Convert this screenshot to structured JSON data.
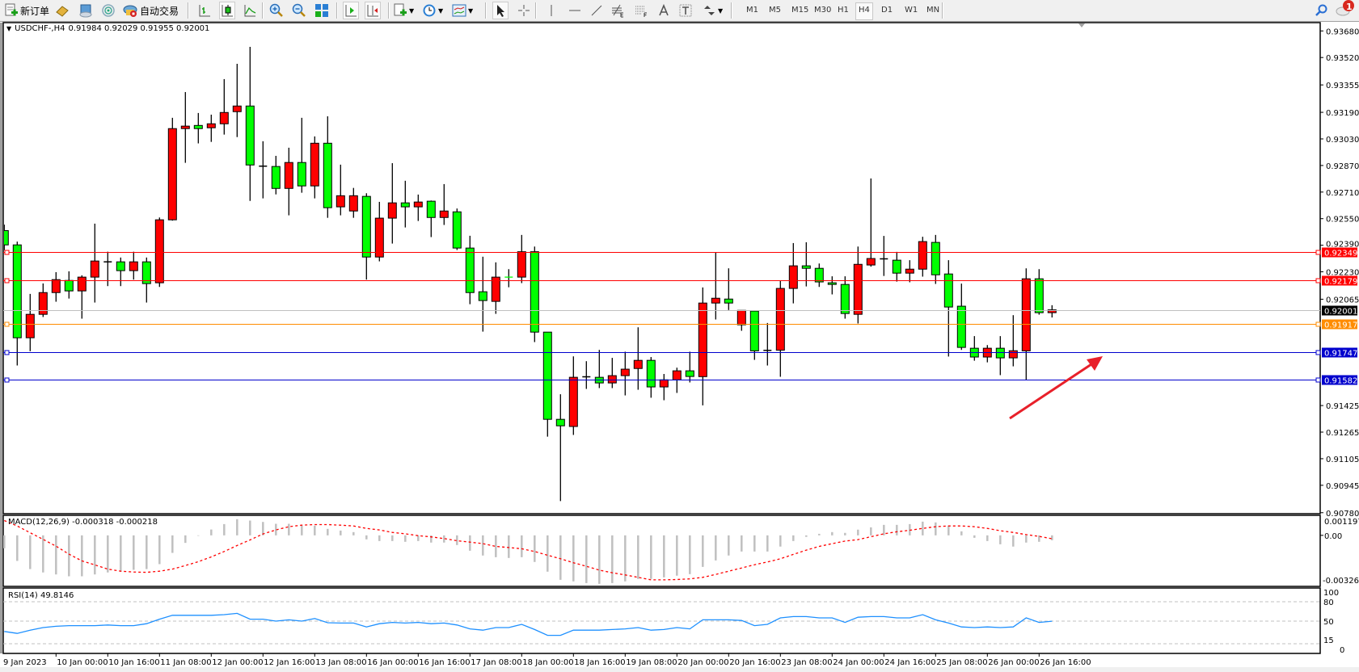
{
  "toolbar": {
    "new_order_label": "新订单",
    "auto_trading_label": "自动交易",
    "timeframes": [
      "M1",
      "M5",
      "M15",
      "M30",
      "H1",
      "H4",
      "D1",
      "W1",
      "MN"
    ],
    "active_timeframe": "H4",
    "notification_count": "1",
    "icons": [
      "new-order-icon",
      "metaeditor-icon",
      "terminal-icon",
      "signals-icon",
      "auto-trading-icon",
      "bar-chart-icon",
      "candlestick-icon",
      "line-chart-icon",
      "zoom-in-icon",
      "zoom-out-icon",
      "tile-windows-icon",
      "auto-scroll-icon",
      "chart-shift-icon",
      "new-chart-icon",
      "periods-icon",
      "templates-icon",
      "cursor-icon",
      "crosshair-icon",
      "vertical-line-icon",
      "horizontal-line-icon",
      "trendline-icon",
      "fibonacci-expansion-icon",
      "fibonacci-fan-icon",
      "text-icon",
      "text-label-icon",
      "arrows-icon",
      "search-icon",
      "notifications-icon"
    ]
  },
  "chart": {
    "symbol_header": "USDCHF-,H4",
    "ohlc_header": "0.91984 0.92029 0.91955 0.92001",
    "colors": {
      "bull": "#ff0000",
      "bear": "#00ff00",
      "wick": "#000000",
      "hist": "#c0c0c0",
      "signal": "#ff0000",
      "rsi": "#1e90ff",
      "arrow": "#e8202a"
    },
    "price_axis_labels": [
      "0.93680",
      "0.93520",
      "0.93355",
      "0.93190",
      "0.93030",
      "0.92870",
      "0.92710",
      "0.92550",
      "0.92390",
      "0.92230",
      "0.92065",
      "0.91425",
      "0.91265",
      "0.91105",
      "0.90945",
      "0.90780"
    ],
    "levels": [
      {
        "price": "0.92349",
        "color": "#ff0000"
      },
      {
        "price": "0.92179",
        "color": "#ff0000"
      },
      {
        "price": "0.92001",
        "color": "#000000",
        "line": "#c0c0c0"
      },
      {
        "price": "0.91917",
        "color": "#ff8c00"
      },
      {
        "price": "0.91747",
        "color": "#0000cd"
      },
      {
        "price": "0.91582",
        "color": "#0000cd"
      }
    ],
    "x_labels": [
      "9 Jan 2023",
      "10 Jan 00:00",
      "10 Jan 16:00",
      "11 Jan 08:00",
      "12 Jan 00:00",
      "12 Jan 16:00",
      "13 Jan 08:00",
      "16 Jan 00:00",
      "16 Jan 16:00",
      "17 Jan 08:00",
      "18 Jan 00:00",
      "18 Jan 16:00",
      "19 Jan 08:00",
      "20 Jan 00:00",
      "20 Jan 16:00",
      "23 Jan 08:00",
      "24 Jan 00:00",
      "24 Jan 16:00",
      "25 Jan 08:00",
      "26 Jan 00:00",
      "26 Jan 16:00"
    ]
  },
  "macd": {
    "label": "MACD(12,26,9) -0.000318 -0.000218",
    "axis_labels": [
      "0.001197",
      "0.00",
      "-0.003263"
    ]
  },
  "rsi": {
    "label": "RSI(14) 49.8146",
    "axis_labels": [
      "100",
      "80",
      "50",
      "15",
      "0"
    ]
  },
  "chart_data": {
    "type": "candlestick",
    "timeframe": "H4",
    "ylim": [
      0.90774,
      0.9373
    ],
    "ohlc": [
      [
        0.92478,
        0.92514,
        0.9236,
        0.92392
      ],
      [
        0.92392,
        0.92412,
        0.91666,
        0.91833
      ],
      [
        0.91833,
        0.92097,
        0.91752,
        0.91974
      ],
      [
        0.91974,
        0.9216,
        0.91958,
        0.92105
      ],
      [
        0.92105,
        0.92228,
        0.9205,
        0.92183
      ],
      [
        0.92178,
        0.92233,
        0.92069,
        0.92115
      ],
      [
        0.92115,
        0.92209,
        0.91948,
        0.92198
      ],
      [
        0.92198,
        0.9252,
        0.92045,
        0.92295
      ],
      [
        0.9229,
        0.92351,
        0.92144,
        0.9229
      ],
      [
        0.9229,
        0.92316,
        0.92144,
        0.92237
      ],
      [
        0.92237,
        0.92351,
        0.92183,
        0.9229
      ],
      [
        0.9229,
        0.92316,
        0.92045,
        0.92159
      ],
      [
        0.92164,
        0.92557,
        0.92139,
        0.92543
      ],
      [
        0.92543,
        0.93157,
        0.92538,
        0.93092
      ],
      [
        0.93092,
        0.93312,
        0.92886,
        0.93107
      ],
      [
        0.93111,
        0.93186,
        0.93003,
        0.93092
      ],
      [
        0.93097,
        0.93176,
        0.93012,
        0.93121
      ],
      [
        0.93121,
        0.9339,
        0.93056,
        0.93189
      ],
      [
        0.93194,
        0.93482,
        0.93041,
        0.93228
      ],
      [
        0.93228,
        0.93584,
        0.92657,
        0.92873
      ],
      [
        0.92866,
        0.93016,
        0.92672,
        0.92866
      ],
      [
        0.92864,
        0.92928,
        0.92696,
        0.92732
      ],
      [
        0.92732,
        0.92977,
        0.9257,
        0.92888
      ],
      [
        0.92888,
        0.93157,
        0.92706,
        0.92747
      ],
      [
        0.92747,
        0.93045,
        0.92672,
        0.93004
      ],
      [
        0.93004,
        0.93166,
        0.92555,
        0.92616
      ],
      [
        0.92621,
        0.92875,
        0.9257,
        0.92688
      ],
      [
        0.92596,
        0.92735,
        0.92555,
        0.92688
      ],
      [
        0.92684,
        0.92703,
        0.92183,
        0.92319
      ],
      [
        0.92319,
        0.92651,
        0.92293,
        0.92553
      ],
      [
        0.92553,
        0.92884,
        0.924,
        0.92645
      ],
      [
        0.92645,
        0.92778,
        0.92497,
        0.92621
      ],
      [
        0.92621,
        0.92695,
        0.92536,
        0.9265
      ],
      [
        0.92655,
        0.92659,
        0.92439,
        0.92557
      ],
      [
        0.92557,
        0.92758,
        0.92512,
        0.92596
      ],
      [
        0.92591,
        0.92611,
        0.92361,
        0.92373
      ],
      [
        0.92373,
        0.92447,
        0.92035,
        0.92105
      ],
      [
        0.9211,
        0.92321,
        0.9187,
        0.92057
      ],
      [
        0.92052,
        0.92287,
        0.91977,
        0.92198
      ],
      [
        0.92198,
        0.92246,
        0.92137,
        0.92197
      ],
      [
        0.92198,
        0.92452,
        0.92162,
        0.92351
      ],
      [
        0.92351,
        0.92382,
        0.91807,
        0.91867
      ],
      [
        0.91867,
        0.91867,
        0.91238,
        0.91342
      ],
      [
        0.91342,
        0.91493,
        0.9085,
        0.91303
      ],
      [
        0.91299,
        0.91721,
        0.91248,
        0.91595
      ],
      [
        0.91598,
        0.91692,
        0.91525,
        0.91598
      ],
      [
        0.91595,
        0.9176,
        0.9153,
        0.91561
      ],
      [
        0.91561,
        0.91712,
        0.9153,
        0.91605
      ],
      [
        0.91605,
        0.91749,
        0.91486,
        0.91644
      ],
      [
        0.91648,
        0.91896,
        0.9152,
        0.91697
      ],
      [
        0.91697,
        0.91717,
        0.91472,
        0.91537
      ],
      [
        0.91537,
        0.91615,
        0.91457,
        0.9158
      ],
      [
        0.9158,
        0.91653,
        0.91501,
        0.91634
      ],
      [
        0.91634,
        0.91749,
        0.91564,
        0.916
      ],
      [
        0.91599,
        0.92136,
        0.91426,
        0.92042
      ],
      [
        0.92042,
        0.92345,
        0.91943,
        0.92071
      ],
      [
        0.92066,
        0.92251,
        0.92,
        0.92042
      ],
      [
        0.91911,
        0.91998,
        0.91875,
        0.91998
      ],
      [
        0.91994,
        0.91994,
        0.917,
        0.91754
      ],
      [
        0.91757,
        0.91922,
        0.91666,
        0.91757
      ],
      [
        0.91758,
        0.92175,
        0.91598,
        0.9213
      ],
      [
        0.9213,
        0.92403,
        0.9204,
        0.92266
      ],
      [
        0.92266,
        0.92408,
        0.92142,
        0.92251
      ],
      [
        0.92251,
        0.9228,
        0.92139,
        0.92169
      ],
      [
        0.92164,
        0.92203,
        0.92094,
        0.92154
      ],
      [
        0.92154,
        0.92203,
        0.91948,
        0.91979
      ],
      [
        0.91974,
        0.92382,
        0.91919,
        0.92275
      ],
      [
        0.92271,
        0.92792,
        0.92261,
        0.9231
      ],
      [
        0.92308,
        0.92446,
        0.92205,
        0.92308
      ],
      [
        0.923,
        0.9235,
        0.92171,
        0.92222
      ],
      [
        0.92222,
        0.923,
        0.92167,
        0.92246
      ],
      [
        0.92246,
        0.92441,
        0.92201,
        0.92412
      ],
      [
        0.92407,
        0.92452,
        0.92157,
        0.92212
      ],
      [
        0.92217,
        0.923,
        0.9172,
        0.92018
      ],
      [
        0.92023,
        0.92159,
        0.9176,
        0.91775
      ],
      [
        0.9177,
        0.91843,
        0.91695,
        0.91717
      ],
      [
        0.91717,
        0.91789,
        0.91685,
        0.9177
      ],
      [
        0.9177,
        0.91843,
        0.91608,
        0.91712
      ],
      [
        0.91712,
        0.91969,
        0.91661,
        0.91755
      ],
      [
        0.91754,
        0.92251,
        0.91579,
        0.92188
      ],
      [
        0.92188,
        0.92246,
        0.91972,
        0.91984
      ],
      [
        0.91984,
        0.92029,
        0.91955,
        0.92001
      ]
    ],
    "macd": {
      "ylim": [
        -0.003263,
        0.001197
      ],
      "histogram": [
        -0.00084,
        -0.00166,
        -0.00219,
        -0.00241,
        -0.00254,
        -0.00266,
        -0.00266,
        -0.00254,
        -0.00241,
        -0.00236,
        -0.00224,
        -0.00219,
        -0.00187,
        -0.00114,
        -0.00049,
        -3e-05,
        0.00038,
        0.00073,
        0.00105,
        0.00096,
        0.00087,
        0.00075,
        0.00075,
        0.00063,
        0.00063,
        0.00042,
        0.00031,
        0.00021,
        -0.00026,
        -0.00037,
        -0.00037,
        -0.00042,
        -0.00037,
        -0.00047,
        -0.00047,
        -0.00063,
        -0.001,
        -0.00131,
        -0.00142,
        -0.00147,
        -0.00142,
        -0.00173,
        -0.00236,
        -0.00289,
        -0.00299,
        -0.0031,
        -0.00315,
        -0.0031,
        -0.00299,
        -0.00283,
        -0.00283,
        -0.00273,
        -0.00262,
        -0.00252,
        -0.00205,
        -0.00163,
        -0.00131,
        -0.00105,
        -0.00105,
        -0.00105,
        -0.00073,
        -0.00037,
        -0.0001,
        0.0001,
        0.00021,
        0.00016,
        0.00037,
        0.00052,
        0.00068,
        0.00068,
        0.00073,
        0.00089,
        0.00084,
        0.00063,
        0.00026,
        -0.00016,
        -0.00037,
        -0.00058,
        -0.00073,
        -0.00047,
        -0.00042,
        -0.000318
      ],
      "signal": [
        0.00096,
        0.00061,
        0.00017,
        -0.00026,
        -0.0007,
        -0.00122,
        -0.00166,
        -0.00192,
        -0.00219,
        -0.00233,
        -0.00238,
        -0.0024,
        -0.00233,
        -0.00219,
        -0.00196,
        -0.00171,
        -0.0014,
        -0.00105,
        -0.00066,
        -0.0003,
        9e-05,
        0.00035,
        0.00056,
        0.00066,
        0.0007,
        0.0007,
        0.00066,
        0.00061,
        0.00045,
        0.00035,
        0.00019,
        0.0001,
        -2e-05,
        -0.0001,
        -0.00021,
        -0.00035,
        -0.00044,
        -0.00054,
        -0.00072,
        -0.00079,
        -0.00087,
        -0.00105,
        -0.00129,
        -0.00152,
        -0.00178,
        -0.00201,
        -0.00226,
        -0.00243,
        -0.00257,
        -0.00273,
        -0.00289,
        -0.00289,
        -0.00287,
        -0.00283,
        -0.00273,
        -0.00254,
        -0.00233,
        -0.00212,
        -0.00191,
        -0.00173,
        -0.00152,
        -0.00124,
        -0.00096,
        -0.00072,
        -0.00054,
        -0.00037,
        -0.00028,
        -9e-05,
        0.0001,
        0.00023,
        0.00033,
        0.00045,
        0.00056,
        0.00061,
        0.00061,
        0.00056,
        0.00045,
        0.0003,
        0.00019,
        5e-05,
        -7e-05,
        -0.000218
      ]
    },
    "rsi": {
      "ylim": [
        0,
        100
      ],
      "levels": [
        80,
        50,
        15
      ],
      "values": [
        34,
        31,
        36,
        40,
        42,
        43,
        43,
        43,
        44,
        43,
        43,
        46,
        53,
        59,
        59,
        59,
        59,
        60,
        62,
        53,
        53,
        50,
        52,
        50,
        54,
        47.5,
        47,
        47,
        41,
        46,
        48,
        47,
        48,
        46,
        47,
        44,
        38,
        36,
        40,
        40,
        45,
        37,
        28,
        28,
        36,
        36,
        36,
        37,
        38,
        40,
        36,
        37,
        40,
        38,
        52,
        52,
        52,
        51,
        43,
        45,
        55,
        57,
        57,
        55,
        55,
        48,
        56,
        57,
        57,
        55,
        55,
        60,
        52,
        47,
        41,
        40,
        41,
        40,
        41,
        55,
        48,
        49.8146
      ]
    }
  }
}
